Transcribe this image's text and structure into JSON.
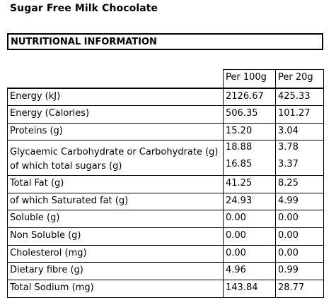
{
  "product": {
    "title": "Sugar Free Milk Chocolate"
  },
  "section": {
    "heading": "NUTRITIONAL INFORMATION"
  },
  "table": {
    "columns": [
      "",
      "Per 100g",
      "Per 20g"
    ],
    "rows": [
      {
        "name": "Energy (kJ)",
        "per100": "2126.67",
        "per20": "425.33"
      },
      {
        "name": "Energy (Calories)",
        "per100": "506.35",
        "per20": "101.27"
      },
      {
        "name": "Proteins (g)",
        "per100": "15.20",
        "per20": "3.04"
      },
      {
        "name": "Glycaemic Carbohydrate or Carbohydrate (g)",
        "per100": "18.88",
        "per20": "3.78",
        "subname": "of which total sugars (g)",
        "subper100": "16.85",
        "subper20": "3.37"
      },
      {
        "name": "Total Fat (g)",
        "per100": "41.25",
        "per20": "8.25"
      },
      {
        "name": "of which Saturated fat (g)",
        "per100": "24.93",
        "per20": "4.99"
      },
      {
        "name": "Soluble (g)",
        "per100": "0.00",
        "per20": "0.00"
      },
      {
        "name": "Non Soluble (g)",
        "per100": "0.00",
        "per20": "0.00"
      },
      {
        "name": "Cholesterol (mg)",
        "per100": "0.00",
        "per20": "0.00"
      },
      {
        "name": "Dietary fibre (g)",
        "per100": "4.96",
        "per20": "0.99"
      },
      {
        "name": "Total Sodium (mg)",
        "per100": "143.84",
        "per20": "28.77"
      }
    ]
  }
}
